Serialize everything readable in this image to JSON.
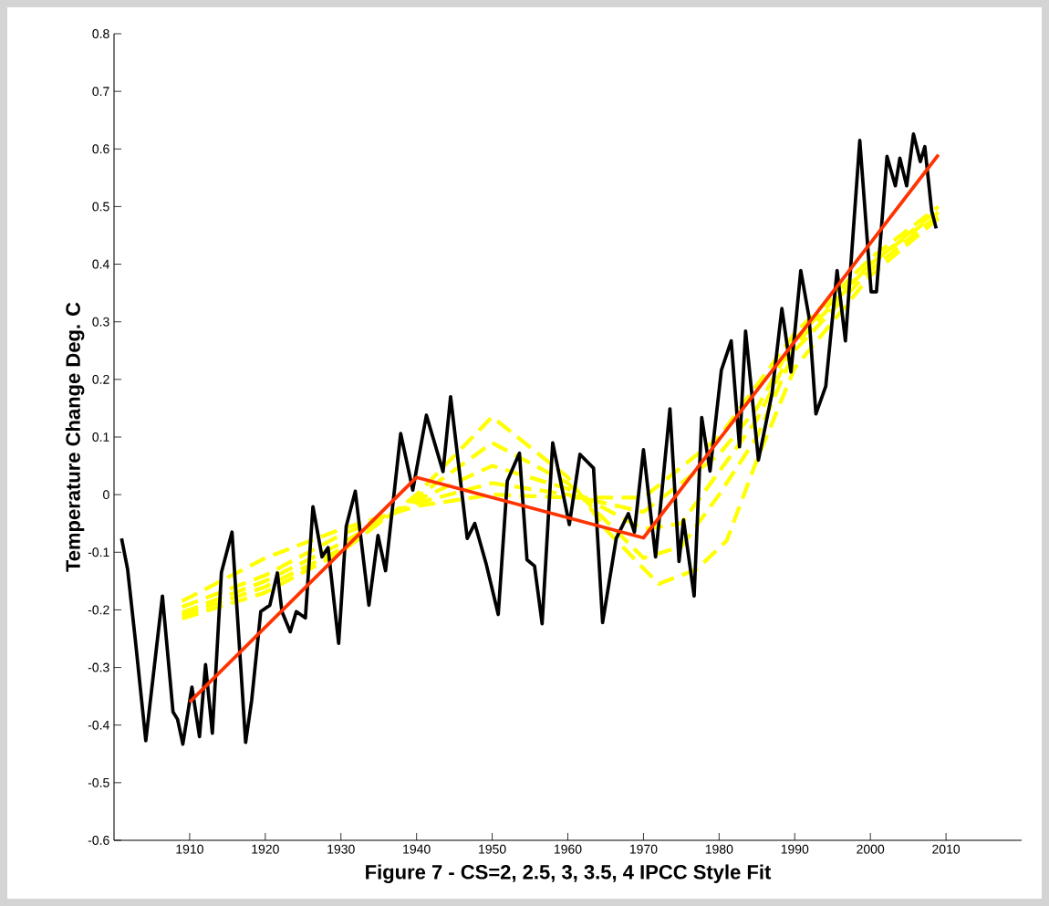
{
  "chart_data": {
    "type": "line",
    "xlabel": "Figure 7  - CS=2, 2.5, 3, 3.5, 4 IPCC Style Fit",
    "ylabel": "Temperature Change Deg. C",
    "xlim": [
      1900,
      2020
    ],
    "ylim": [
      -0.6,
      0.8
    ],
    "xticks": [
      1910,
      1920,
      1930,
      1940,
      1950,
      1960,
      1970,
      1980,
      1990,
      2000,
      2010
    ],
    "yticks": [
      -0.6,
      -0.5,
      -0.4,
      -0.3,
      -0.2,
      -0.1,
      0,
      0.1,
      0.2,
      0.3,
      0.4,
      0.5,
      0.6,
      0.7,
      0.8
    ],
    "series": [
      {
        "color": "#ffff00",
        "line_style": "dashed",
        "x": [
          1909,
          1920,
          1930,
          1940,
          1950,
          1960,
          1965,
          1972,
          1977,
          1981,
          1985,
          1990,
          2000,
          2009
        ],
        "values": [
          -0.215,
          -0.17,
          -0.1,
          0.0,
          0.135,
          0.03,
          -0.06,
          -0.155,
          -0.13,
          -0.08,
          0.06,
          0.22,
          0.38,
          0.48
        ]
      },
      {
        "color": "#ffff00",
        "line_style": "dashed",
        "x": [
          1909,
          1920,
          1930,
          1940,
          1950,
          1960,
          1970,
          1975,
          1980,
          1985,
          1990,
          2000,
          2009
        ],
        "values": [
          -0.21,
          -0.16,
          -0.095,
          -0.005,
          0.09,
          0.02,
          -0.11,
          -0.09,
          0.0,
          0.1,
          0.25,
          0.39,
          0.485
        ]
      },
      {
        "color": "#ffff00",
        "line_style": "dashed",
        "x": [
          1909,
          1920,
          1930,
          1940,
          1950,
          1960,
          1970,
          1975,
          1980,
          1985,
          1990,
          2000,
          2009
        ],
        "values": [
          -0.205,
          -0.15,
          -0.085,
          -0.01,
          0.05,
          0.01,
          -0.06,
          -0.05,
          0.04,
          0.13,
          0.26,
          0.4,
          0.49
        ]
      },
      {
        "color": "#ffff00",
        "line_style": "dashed",
        "x": [
          1909,
          1920,
          1930,
          1940,
          1950,
          1960,
          1970,
          1980,
          1985,
          1990,
          2000,
          2009
        ],
        "values": [
          -0.195,
          -0.14,
          -0.07,
          -0.015,
          0.02,
          0.0,
          -0.03,
          0.07,
          0.15,
          0.27,
          0.4,
          0.495
        ]
      },
      {
        "color": "#ffff00",
        "line_style": "dashed",
        "x": [
          1909,
          1920,
          1930,
          1940,
          1950,
          1960,
          1970,
          1980,
          1990,
          2000,
          2009
        ],
        "values": [
          -0.185,
          -0.11,
          -0.06,
          -0.02,
          0.0,
          -0.005,
          -0.005,
          0.1,
          0.28,
          0.41,
          0.5
        ]
      },
      {
        "color": "#000000",
        "line_style": "solid",
        "x": [
          1901,
          1901.8,
          1902.8,
          1904.2,
          1906.4,
          1907.8,
          1908.4,
          1909.1,
          1910.3,
          1911.3,
          1912.1,
          1913,
          1914.2,
          1915.6,
          1917.4,
          1918.2,
          1919.4,
          1920.6,
          1921.6,
          1922.2,
          1923.3,
          1924.1,
          1925.3,
          1926.3,
          1927.5,
          1928.3,
          1929.7,
          1930.7,
          1931.9,
          1933.7,
          1934.9,
          1935.9,
          1937.9,
          1939.5,
          1941.3,
          1943.5,
          1944.5,
          1946.7,
          1947.7,
          1949.2,
          1950.8,
          1952,
          1953.6,
          1954.6,
          1955.6,
          1956.6,
          1958,
          1960.2,
          1961.6,
          1963.4,
          1964.6,
          1966.4,
          1968,
          1968.8,
          1970,
          1971.6,
          1973.5,
          1974.7,
          1975.3,
          1976.7,
          1977.7,
          1978.8,
          1980.3,
          1981.6,
          1982.7,
          1983.5,
          1985.2,
          1987,
          1988.3,
          1989.5,
          1990.8,
          1991.9,
          1992.8,
          1994.1,
          1995.6,
          1996.7,
          1998.6,
          2000.1,
          2000.8,
          2002.2,
          2003.3,
          2003.9,
          2004.8,
          2005.7,
          2006.6,
          2007.2,
          2008.1,
          2008.7
        ],
        "values": [
          -0.076,
          -0.13,
          -0.25,
          -0.427,
          -0.176,
          -0.377,
          -0.39,
          -0.433,
          -0.334,
          -0.42,
          -0.295,
          -0.414,
          -0.135,
          -0.065,
          -0.43,
          -0.357,
          -0.203,
          -0.192,
          -0.136,
          -0.203,
          -0.238,
          -0.203,
          -0.214,
          -0.021,
          -0.108,
          -0.092,
          -0.258,
          -0.055,
          0.006,
          -0.192,
          -0.071,
          -0.132,
          0.106,
          0.008,
          0.138,
          0.04,
          0.17,
          -0.076,
          -0.05,
          -0.12,
          -0.208,
          0.024,
          0.072,
          -0.113,
          -0.124,
          -0.224,
          0.09,
          -0.052,
          0.07,
          0.046,
          -0.222,
          -0.076,
          -0.033,
          -0.065,
          0.078,
          -0.108,
          0.149,
          -0.116,
          -0.044,
          -0.176,
          0.134,
          0.041,
          0.216,
          0.267,
          0.083,
          0.284,
          0.06,
          0.176,
          0.323,
          0.213,
          0.389,
          0.307,
          0.14,
          0.188,
          0.389,
          0.267,
          0.615,
          0.352,
          0.352,
          0.587,
          0.536,
          0.584,
          0.536,
          0.626,
          0.578,
          0.604,
          0.493,
          0.462
        ]
      },
      {
        "color": "#ff3300",
        "line_style": "solid",
        "x": [
          1910,
          1940,
          1970,
          2009
        ],
        "values": [
          -0.36,
          0.03,
          -0.075,
          0.59
        ]
      }
    ]
  }
}
